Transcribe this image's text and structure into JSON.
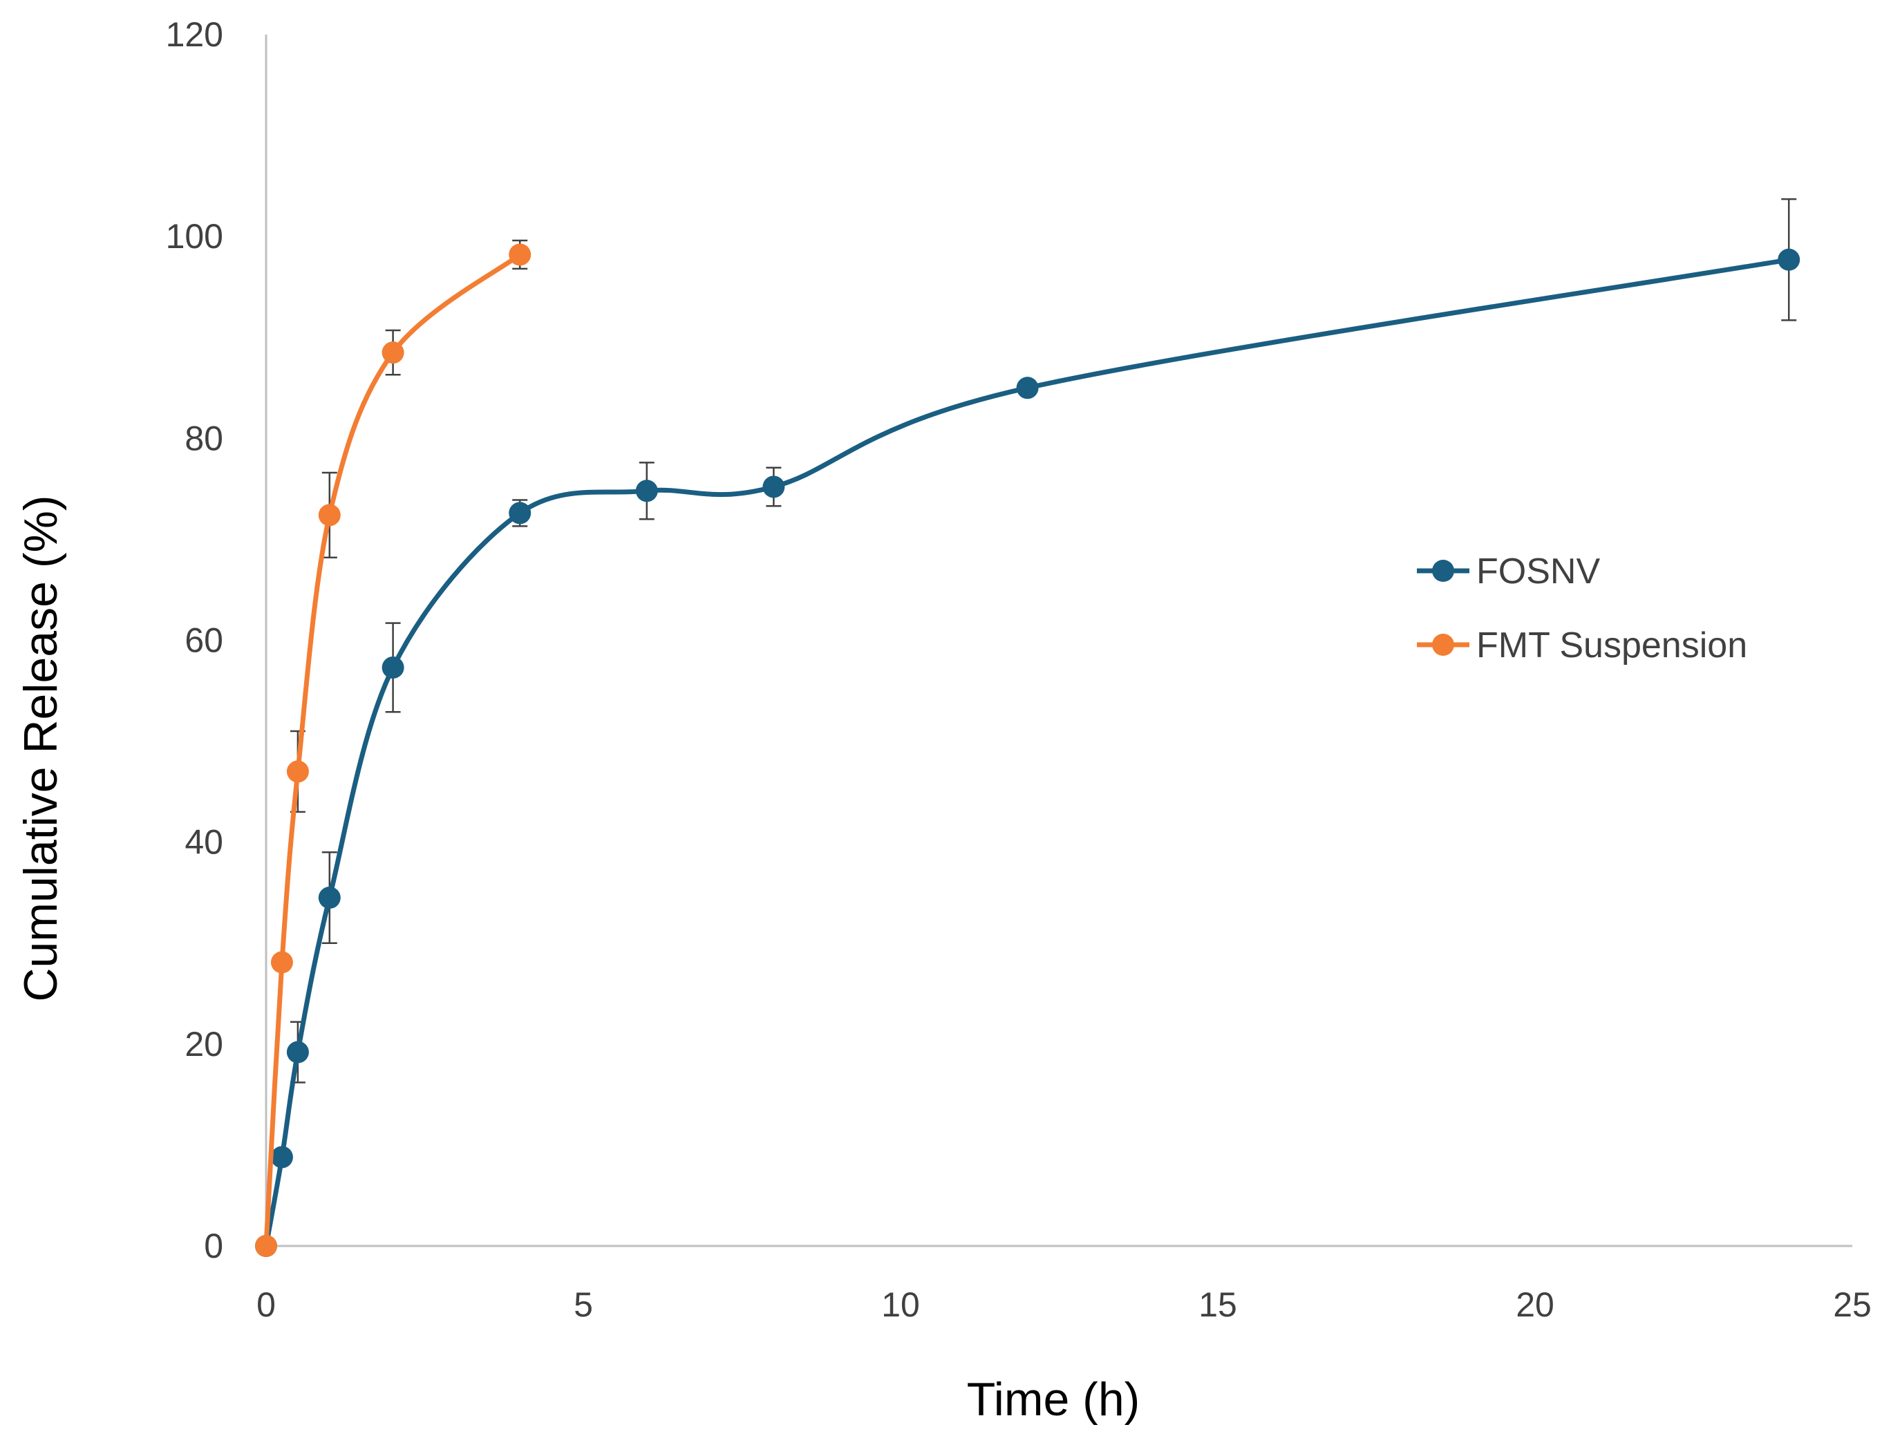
{
  "chart_data": {
    "type": "line",
    "title": "",
    "xlabel": "Time (h)",
    "ylabel": "Cumulative Release (%)",
    "xlim": [
      0,
      25
    ],
    "ylim": [
      0,
      120
    ],
    "xticks": [
      0,
      5,
      10,
      15,
      20,
      25
    ],
    "yticks": [
      0,
      20,
      40,
      60,
      80,
      100,
      120
    ],
    "grid": false,
    "legend_position": "right",
    "series": [
      {
        "name": "FOSNV",
        "color": "#1a5e82",
        "x": [
          0,
          0.25,
          0.5,
          1,
          2,
          4,
          6,
          8,
          12,
          24
        ],
        "y": [
          0,
          8.8,
          19.2,
          34.5,
          57.3,
          72.6,
          74.8,
          75.2,
          85.0,
          97.7
        ],
        "error": [
          0,
          0,
          3.0,
          4.5,
          4.4,
          1.3,
          2.8,
          1.9,
          0,
          6.0
        ]
      },
      {
        "name": "FMT Suspension",
        "color": "#f37d32",
        "x": [
          0,
          0.25,
          0.5,
          1,
          2,
          4
        ],
        "y": [
          0,
          28.1,
          47.0,
          72.4,
          88.5,
          98.2
        ],
        "error": [
          0,
          0,
          4.0,
          4.2,
          2.2,
          1.4
        ]
      }
    ]
  }
}
